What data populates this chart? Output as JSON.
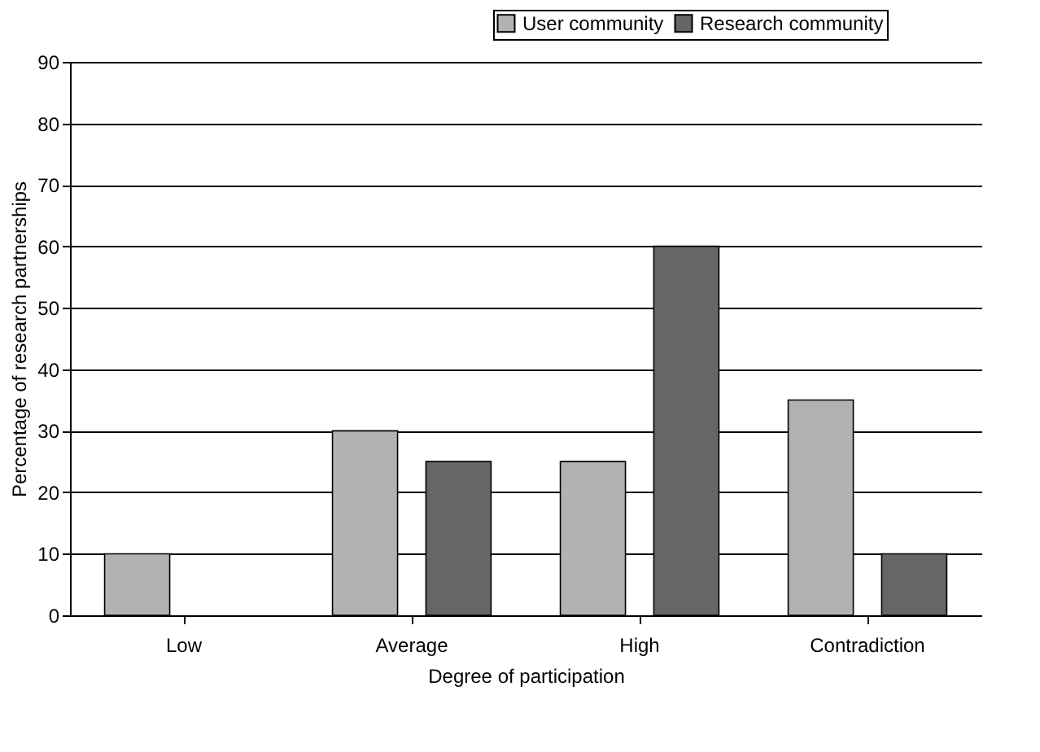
{
  "chart_data": {
    "type": "bar",
    "xlabel": "Degree of participation",
    "ylabel": "Percentage of research partnerships",
    "categories": [
      "Low",
      "Average",
      "High",
      "Contradiction"
    ],
    "series": [
      {
        "name": "User community",
        "color": "#b2b2b2",
        "values": [
          10,
          30,
          25,
          35
        ]
      },
      {
        "name": "Research community",
        "color": "#666666",
        "values": [
          null,
          25,
          60,
          10
        ]
      }
    ],
    "ylim": [
      0,
      90
    ],
    "yticks": [
      0,
      10,
      20,
      30,
      40,
      50,
      60,
      70,
      80,
      90
    ],
    "grid": "y",
    "legend": "top right"
  }
}
